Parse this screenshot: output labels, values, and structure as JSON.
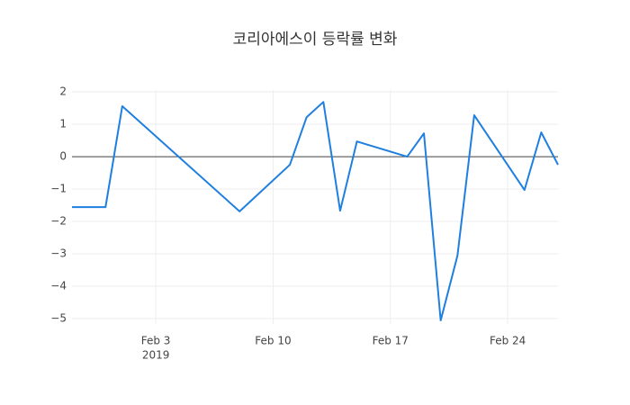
{
  "chart_data": {
    "type": "line",
    "title": "코리아에스이 등락률 변화",
    "x": [
      "2019-01-29",
      "2019-01-31",
      "2019-02-01",
      "2019-02-08",
      "2019-02-11",
      "2019-02-12",
      "2019-02-13",
      "2019-02-14",
      "2019-02-15",
      "2019-02-18",
      "2019-02-19",
      "2019-02-20",
      "2019-02-21",
      "2019-02-22",
      "2019-02-25",
      "2019-02-26",
      "2019-02-27"
    ],
    "series": [
      {
        "color": "#1f7fe0",
        "values": [
          -1.56,
          -1.56,
          1.56,
          -1.69,
          -0.25,
          1.22,
          1.69,
          -1.67,
          0.47,
          0,
          0.72,
          -5.06,
          -3.06,
          1.28,
          -1.03,
          0.75,
          -0.25
        ]
      }
    ],
    "xlim": [
      "2019-01-29",
      "2019-02-27"
    ],
    "xticks": [
      {
        "value": "2019-02-03",
        "label": "Feb 3"
      },
      {
        "value": "2019-02-10",
        "label": "Feb 10"
      },
      {
        "value": "2019-02-17",
        "label": "Feb 17"
      },
      {
        "value": "2019-02-24",
        "label": "Feb 24"
      }
    ],
    "xtick_year": "2019",
    "ylim": [
      -5.17,
      2.06
    ],
    "yticks": [
      2,
      1,
      0,
      {
        "value": -1,
        "label": "−1"
      },
      {
        "value": -2,
        "label": "−2"
      },
      {
        "value": -3,
        "label": "−3"
      },
      {
        "value": -4,
        "label": "−4"
      },
      {
        "value": -5,
        "label": "−5"
      }
    ],
    "grid": true,
    "zeroline": true
  }
}
